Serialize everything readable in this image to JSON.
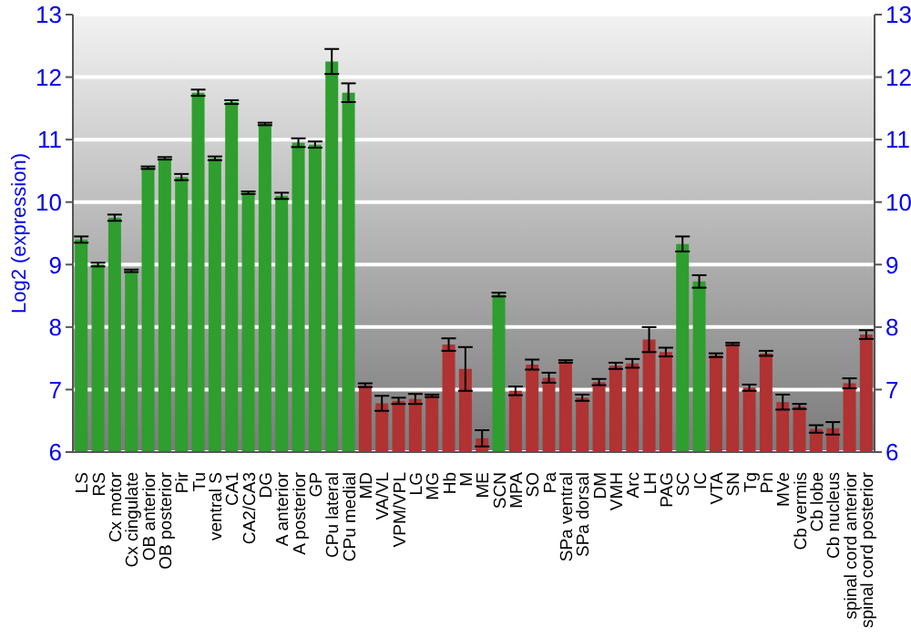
{
  "chart_data": {
    "type": "bar",
    "ylabel": "Log2 (expression)",
    "categories": [
      "LS",
      "RS",
      "Cx motor",
      "Cx cingulate",
      "OB anterior",
      "OB posterior",
      "Pir",
      "Tu",
      "ventral S",
      "CA1",
      "CA2/CA3",
      "DG",
      "A anterior",
      "A posterior",
      "GP",
      "CPu lateral",
      "CPu medial",
      "MD",
      "VA/VL",
      "VPM/VPL",
      "LG",
      "MG",
      "Hb",
      "M",
      "ME",
      "SCN",
      "MPA",
      "SO",
      "Pa",
      "SPa ventral",
      "SPa dorsal",
      "DM",
      "VMH",
      "Arc",
      "LH",
      "PAG",
      "SC",
      "IC",
      "VTA",
      "SN",
      "Tg",
      "Pn",
      "MVe",
      "Cb vermis",
      "Cb lobe",
      "Cb nucleus",
      "spinal cord anterior",
      "spinal cord posterior"
    ],
    "values": [
      9.4,
      9.0,
      9.75,
      8.9,
      10.55,
      10.7,
      10.4,
      11.75,
      10.7,
      11.6,
      10.15,
      11.25,
      10.1,
      10.95,
      10.92,
      12.25,
      11.75,
      7.07,
      6.78,
      6.82,
      6.85,
      6.9,
      7.72,
      7.33,
      6.22,
      8.52,
      6.98,
      7.4,
      7.19,
      7.45,
      6.87,
      7.12,
      7.38,
      7.42,
      7.8,
      7.6,
      9.33,
      8.73,
      7.55,
      7.73,
      7.03,
      7.58,
      6.8,
      6.73,
      6.37,
      6.38,
      7.1,
      7.88
    ],
    "errors": [
      0.05,
      0.03,
      0.05,
      0.02,
      0.02,
      0.02,
      0.05,
      0.05,
      0.03,
      0.03,
      0.02,
      0.02,
      0.05,
      0.07,
      0.05,
      0.2,
      0.15,
      0.03,
      0.12,
      0.05,
      0.08,
      0.02,
      0.1,
      0.35,
      0.13,
      0.03,
      0.07,
      0.08,
      0.08,
      0.02,
      0.05,
      0.05,
      0.05,
      0.07,
      0.2,
      0.07,
      0.12,
      0.1,
      0.03,
      0.02,
      0.05,
      0.04,
      0.12,
      0.04,
      0.06,
      0.1,
      0.08,
      0.07
    ],
    "colors": [
      "#2e9e2e",
      "#2e9e2e",
      "#2e9e2e",
      "#2e9e2e",
      "#2e9e2e",
      "#2e9e2e",
      "#2e9e2e",
      "#2e9e2e",
      "#2e9e2e",
      "#2e9e2e",
      "#2e9e2e",
      "#2e9e2e",
      "#2e9e2e",
      "#2e9e2e",
      "#2e9e2e",
      "#2e9e2e",
      "#2e9e2e",
      "#b03232",
      "#b03232",
      "#b03232",
      "#b03232",
      "#b03232",
      "#b03232",
      "#b03232",
      "#b03232",
      "#2e9e2e",
      "#b03232",
      "#b03232",
      "#b03232",
      "#b03232",
      "#b03232",
      "#b03232",
      "#b03232",
      "#b03232",
      "#b03232",
      "#b03232",
      "#2e9e2e",
      "#2e9e2e",
      "#b03232",
      "#b03232",
      "#b03232",
      "#b03232",
      "#b03232",
      "#b03232",
      "#b03232",
      "#b03232",
      "#b03232",
      "#b03232"
    ],
    "ylim": [
      6,
      13
    ],
    "yticks": [
      6,
      7,
      8,
      9,
      10,
      11,
      12,
      13
    ],
    "y2lim": [
      6,
      13
    ],
    "y2ticks": [
      6,
      7,
      8,
      9,
      10,
      11,
      12,
      13
    ],
    "grid": "y",
    "legend": false
  }
}
